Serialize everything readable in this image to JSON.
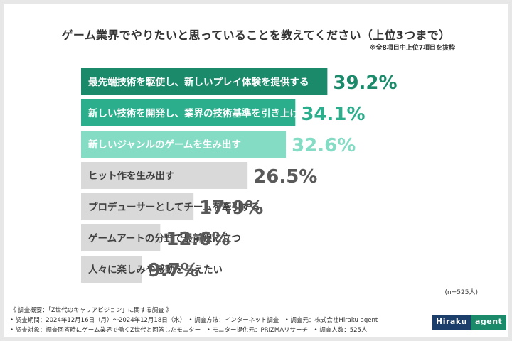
{
  "title": "ゲーム業界でやりたいと思っていることを教えてください（上位3つまで）",
  "note": "※全8項目中上位7項目を抜粋",
  "n_label": "(n=525人)",
  "footer": {
    "line1": "《 調査概要：「Z世代のキャリアビジョン」に関する調査 》",
    "line2": "• 調査期間：2024年12月16日（月）〜2024年12月18日（水）　• 調査方法：インターネット調査　• 調査元：株式会社Hiraku agent",
    "line3": "• 調査対象：調査回答時にゲーム業界で働くZ世代と回答したモニター　• モニター提供元：PRIZMAリサーチ　• 調査人数：525人"
  },
  "logo": {
    "part1": "Hiraku",
    "part2": "agent"
  },
  "colors": {
    "rank1": "#1a8a6a",
    "rank2": "#2aae8c",
    "rank3": "#84dcc4",
    "other": "#d9d9d9",
    "value_rank1": "#1a8a6a",
    "value_rank2": "#2aae8c",
    "value_rank3": "#84dcc4",
    "value_other": "#595959"
  },
  "chart_data": {
    "type": "bar",
    "orientation": "horizontal",
    "categories": [
      "最先端技術を駆使し、新しいプレイ体験を提供する",
      "新しい技術を開発し、業界の技術基準を引き上げる",
      "新しいジャンルのゲームを生み出す",
      "ヒット作を生み出す",
      "プロデューサーとしてチームを牽引する",
      "ゲームアートの分野で最前線に立つ",
      "人々に楽しみや感動を与えたい"
    ],
    "values": [
      39.2,
      34.1,
      32.6,
      26.5,
      17.9,
      12.6,
      9.7
    ],
    "value_labels": [
      "39.2%",
      "34.1%",
      "32.6%",
      "26.5%",
      "17.9%",
      "12.6%",
      "9.7%"
    ],
    "unit": "%",
    "xlim": [
      0,
      55
    ],
    "grid": false,
    "legend": "none"
  }
}
